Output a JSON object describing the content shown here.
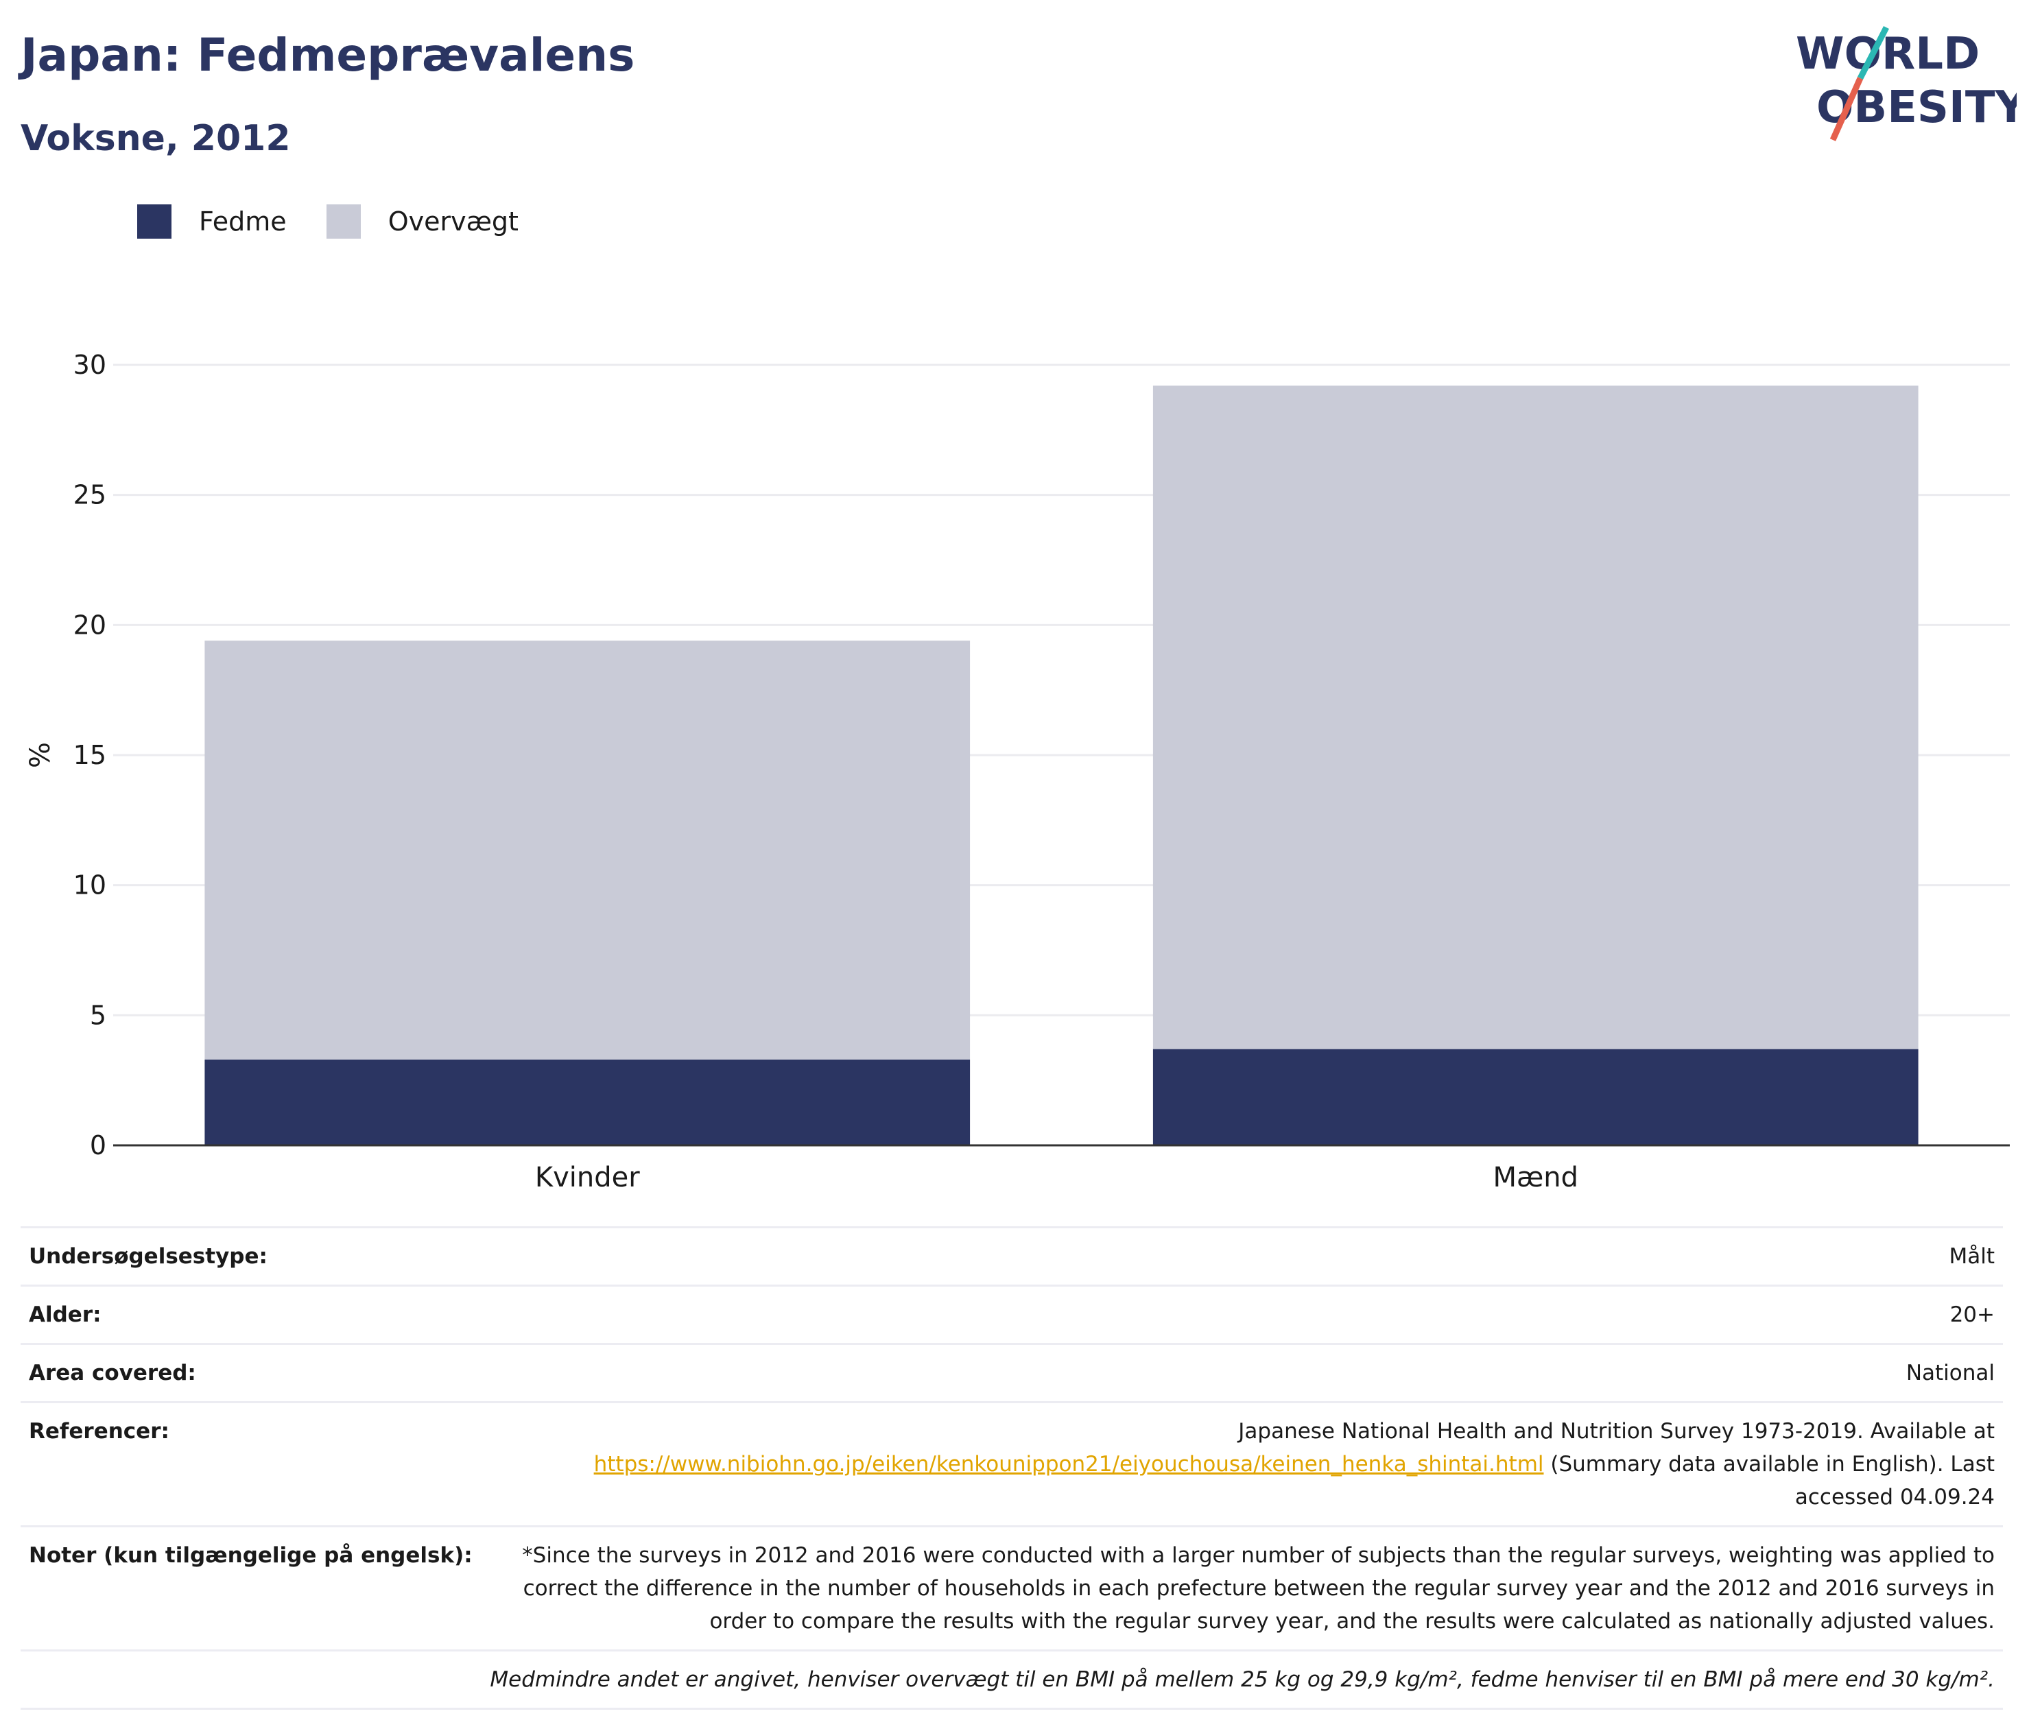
{
  "header": {
    "title": "Japan: Fedmeprævalens",
    "subtitle": "Voksne, 2012"
  },
  "logo": {
    "line1": "WORLD",
    "line2": "OBESITY",
    "colors": {
      "text": "#2b3562",
      "slash_teal": "#2bb7b3",
      "slash_red": "#e5604d"
    }
  },
  "legend": [
    {
      "label": "Fedme",
      "color": "#2b3562"
    },
    {
      "label": "Overvægt",
      "color": "#c9cbd7"
    }
  ],
  "chart_data": {
    "type": "bar",
    "stacked": true,
    "categories": [
      "Kvinder",
      "Mænd"
    ],
    "series": [
      {
        "name": "Fedme",
        "values": [
          3.3,
          3.7
        ],
        "color": "#2b3562"
      },
      {
        "name": "Overvægt",
        "values": [
          16.1,
          25.5
        ],
        "color": "#c9cbd7"
      }
    ],
    "ylabel": "%",
    "ylim": [
      0,
      30
    ],
    "yticks": [
      0,
      5,
      10,
      15,
      20,
      25,
      30
    ],
    "grid": true,
    "legend_position": "top-left"
  },
  "info": {
    "survey_type": {
      "label": "Undersøgelsestype:",
      "value": "Målt"
    },
    "age": {
      "label": "Alder:",
      "value": "20+"
    },
    "area": {
      "label": "Area covered:",
      "value": "National"
    },
    "references": {
      "label": "Referencer:",
      "text_before": "Japanese National Health and Nutrition Survey 1973-2019. Available at",
      "link": "https://www.nibiohn.go.jp/eiken/kenkounippon21/eiyouchousa/keinen_henka_shintai.html",
      "text_after": " (Summary data available in English). Last accessed 04.09.24"
    },
    "notes": {
      "label": "Noter (kun tilgængelige på engelsk):",
      "value": "*Since the surveys in 2012 and 2016 were conducted with a larger number of subjects than the regular surveys, weighting was applied to correct the difference in the number of households in each prefecture between the regular survey year and the 2012 and 2016 surveys in order to compare the results with the regular survey year, and the results were calculated as nationally adjusted values."
    },
    "footnote": "Medmindre andet er angivet, henviser overvægt til en BMI på mellem 25 kg og 29,9 kg/m², fedme henviser til en BMI på mere end 30 kg/m²."
  }
}
